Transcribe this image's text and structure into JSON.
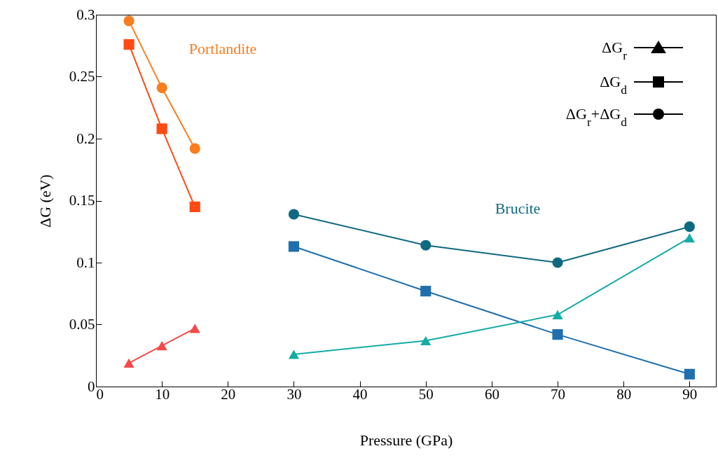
{
  "chart_data": {
    "type": "line",
    "xlabel": "Pressure (GPa)",
    "ylabel": "ΔG (eV)",
    "xlim": [
      0,
      94
    ],
    "xticks": [
      0,
      10,
      20,
      30,
      40,
      50,
      60,
      70,
      80,
      90
    ],
    "ylim": [
      0,
      0.3
    ],
    "yticks": [
      0,
      0.05,
      0.1,
      0.15,
      0.2,
      0.25,
      0.3
    ],
    "grid": false,
    "line_style": "solid",
    "series": [
      {
        "color": "#fa7d1e",
        "marker": "circle",
        "x": [
          5,
          10,
          15
        ],
        "values": [
          0.295,
          0.241,
          0.192
        ]
      },
      {
        "color": "#ff4a12",
        "marker": "square",
        "x": [
          5,
          10,
          15
        ],
        "values": [
          0.276,
          0.208,
          0.145
        ]
      },
      {
        "color": "#f54a4a",
        "marker": "triangle",
        "x": [
          5,
          10,
          15
        ],
        "values": [
          0.019,
          0.033,
          0.047
        ]
      },
      {
        "color": "#0e6a80",
        "marker": "circle",
        "x": [
          30,
          50,
          70,
          90
        ],
        "values": [
          0.139,
          0.114,
          0.1,
          0.129
        ]
      },
      {
        "color": "#1f6faf",
        "marker": "square",
        "x": [
          30,
          50,
          70,
          90
        ],
        "values": [
          0.113,
          0.077,
          0.042,
          0.01
        ]
      },
      {
        "color": "#14aca6",
        "marker": "triangle",
        "x": [
          30,
          50,
          70,
          90
        ],
        "values": [
          0.026,
          0.037,
          0.058,
          0.12
        ]
      }
    ],
    "annotations": [
      "Portlandite",
      "Brucite",
      "ΔG$_{r}$",
      "ΔG$_{d}$",
      "ΔG$_{r}$+ΔG$_{d}$"
    ]
  }
}
